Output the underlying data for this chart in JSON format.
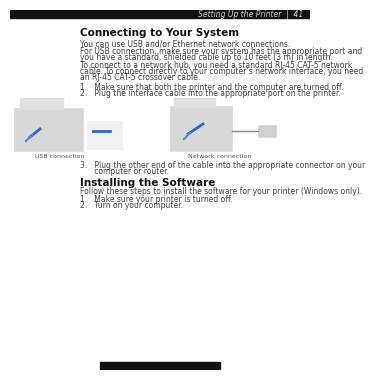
{
  "bg_color": "#ffffff",
  "header_text": "Setting Up the Printer  |  41",
  "header_color": "#888888",
  "header_fontsize": 5.5,
  "section1_title": "Connecting to Your System",
  "section2_title": "Installing the Software",
  "title_fontsize": 7.5,
  "para1": "You can use USB and/or Ethernet network connections.",
  "para2a": "For USB connection, make sure your system has the appropriate port and",
  "para2b": "you have a standard, shielded cable up to 10 feet (3 m) in length.",
  "para3a": "To connect to a network hub, you need a standard RJ-45 CAT-5 network",
  "para3b": "cable. To connect directly to your computer’s network interface, you need",
  "para3c": "an RJ-45 CAT-5 crossover cable.",
  "step1": "1.   Make sure that both the printer and the computer are turned off.",
  "step2": "2.   Plug the interface cable into the appropriate port on the printer.",
  "step3a": "3.   Plug the other end of the cable into the appropriate connector on your",
  "step3b": "      computer or router.",
  "para4": "Follow these steps to install the software for your printer (Windows only).",
  "step4": "1.   Make sure your printer is turned off.",
  "step5": "2.   Turn on your computer.",
  "usb_label": "USB connection",
  "net_label": "Network connection",
  "body_fontsize": 5.5,
  "body_color": "#444444",
  "top_bar_color": "#111111",
  "footer_bar_color": "#111111"
}
